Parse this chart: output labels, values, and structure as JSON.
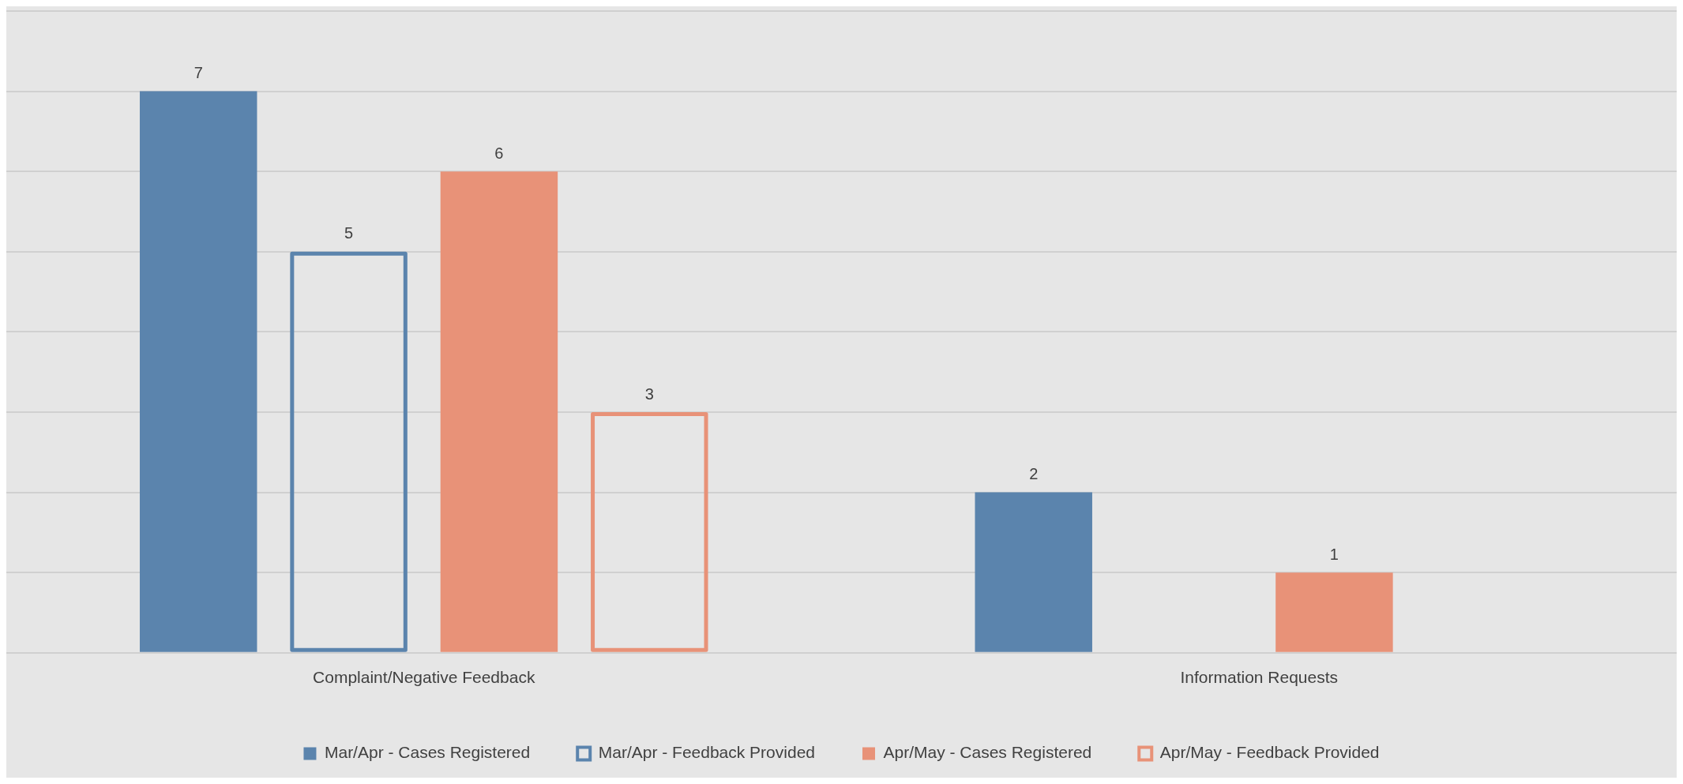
{
  "chart_data": {
    "type": "bar",
    "categories": [
      "Complaint/Negative Feedback",
      "Information Requests"
    ],
    "series": [
      {
        "name": "Mar/Apr - Cases Registered",
        "color": "#5b84ad",
        "values": [
          7,
          2
        ]
      },
      {
        "name": "Mar/Apr - Feedback Provided",
        "color": "#5b84ad",
        "line_style": "solid",
        "values": [
          5,
          null
        ]
      },
      {
        "name": "Apr/May - Cases Registered",
        "color": "#e89278",
        "values": [
          6,
          1
        ]
      },
      {
        "name": "Apr/May - Feedback Provided",
        "color": "#e89278",
        "line_style": "solid",
        "values": [
          3,
          null
        ]
      }
    ],
    "ylim": [
      0,
      8
    ],
    "yticks": [
      {
        "value": 0,
        "label": null
      },
      {
        "value": 1,
        "label": null
      },
      {
        "value": 2,
        "label": null
      },
      {
        "value": 3,
        "label": null
      },
      {
        "value": 4,
        "label": null
      },
      {
        "value": 5,
        "label": null
      },
      {
        "value": 6,
        "label": null
      },
      {
        "value": 7,
        "label": null
      },
      {
        "value": 8,
        "label": null
      }
    ],
    "tick_labels": "x",
    "grid": "y",
    "legend": "bottom",
    "data_labels": true
  }
}
